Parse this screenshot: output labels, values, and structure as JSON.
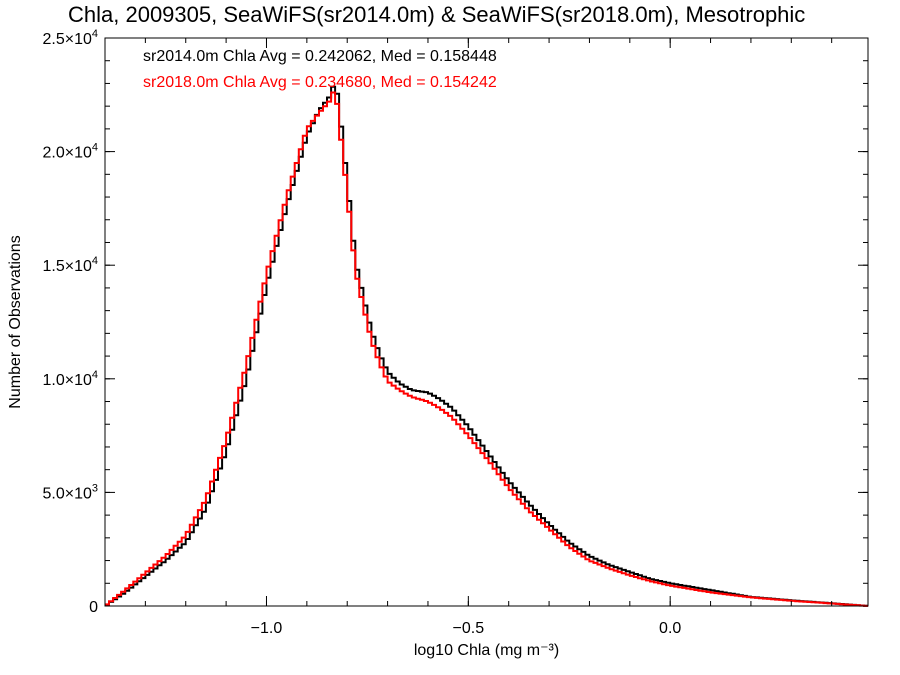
{
  "chart_data": {
    "type": "line",
    "title": "Chla, 2009305, SeaWiFS(sr2014.0m) & SeaWiFS(sr2018.0m), Mesotrophic",
    "xlabel": "log10 Chla (mg m⁻³)",
    "ylabel": "Number of Observations",
    "xlim": [
      -1.4,
      0.49
    ],
    "ylim": [
      0,
      25000
    ],
    "x_ticks": [
      {
        "value": -1.0,
        "label": "−1.0"
      },
      {
        "value": -0.5,
        "label": "−0.5"
      },
      {
        "value": 0.0,
        "label": "0.0"
      }
    ],
    "y_ticks": [
      {
        "value": 0,
        "mant": "0",
        "exp": ""
      },
      {
        "value": 5000,
        "mant": "5.0×10",
        "exp": "3"
      },
      {
        "value": 10000,
        "mant": "1.0×10",
        "exp": "4"
      },
      {
        "value": 15000,
        "mant": "1.5×10",
        "exp": "4"
      },
      {
        "value": 20000,
        "mant": "2.0×10",
        "exp": "4"
      },
      {
        "value": 25000,
        "mant": "2.5×10",
        "exp": "4"
      }
    ],
    "grid": false,
    "annotations": [
      {
        "text": "sr2014.0m Chla Avg = 0.242062, Med = 0.158448",
        "color": "#000000"
      },
      {
        "text": "sr2018.0m Chla Avg = 0.234680, Med = 0.154242",
        "color": "#ff0000"
      }
    ],
    "series": [
      {
        "color": "#000000",
        "x": [
          -1.4,
          -1.35,
          -1.3,
          -1.25,
          -1.2,
          -1.15,
          -1.1,
          -1.05,
          -1.0,
          -0.95,
          -0.9,
          -0.87,
          -0.84,
          -0.83,
          -0.82,
          -0.8,
          -0.78,
          -0.76,
          -0.74,
          -0.72,
          -0.7,
          -0.67,
          -0.64,
          -0.6,
          -0.57,
          -0.54,
          -0.5,
          -0.45,
          -0.4,
          -0.35,
          -0.3,
          -0.25,
          -0.2,
          -0.15,
          -0.1,
          -0.05,
          0.0,
          0.1,
          0.2,
          0.3,
          0.4,
          0.49
        ],
        "values": [
          0,
          600,
          1300,
          2000,
          2800,
          4300,
          6800,
          10000,
          14100,
          17600,
          20700,
          21800,
          22500,
          23200,
          21900,
          18700,
          15200,
          13600,
          12100,
          11100,
          10300,
          9800,
          9500,
          9400,
          9100,
          8700,
          7900,
          6700,
          5500,
          4500,
          3600,
          2800,
          2200,
          1800,
          1500,
          1200,
          1000,
          700,
          400,
          250,
          120,
          0
        ]
      },
      {
        "color": "#ff0000",
        "x": [
          -1.4,
          -1.35,
          -1.3,
          -1.25,
          -1.2,
          -1.15,
          -1.1,
          -1.05,
          -1.0,
          -0.95,
          -0.9,
          -0.87,
          -0.84,
          -0.83,
          -0.82,
          -0.8,
          -0.78,
          -0.76,
          -0.74,
          -0.72,
          -0.7,
          -0.67,
          -0.64,
          -0.6,
          -0.57,
          -0.54,
          -0.5,
          -0.45,
          -0.4,
          -0.35,
          -0.3,
          -0.25,
          -0.2,
          -0.15,
          -0.1,
          -0.05,
          0.0,
          0.1,
          0.2,
          0.3,
          0.4,
          0.49
        ],
        "values": [
          0,
          700,
          1450,
          2200,
          3100,
          4700,
          7300,
          10600,
          14600,
          18000,
          21000,
          21700,
          22300,
          22900,
          21300,
          18200,
          14800,
          13200,
          11700,
          10700,
          9900,
          9500,
          9200,
          9000,
          8700,
          8300,
          7500,
          6400,
          5200,
          4200,
          3400,
          2600,
          2000,
          1650,
          1350,
          1100,
          900,
          600,
          380,
          230,
          110,
          0
        ]
      }
    ]
  }
}
